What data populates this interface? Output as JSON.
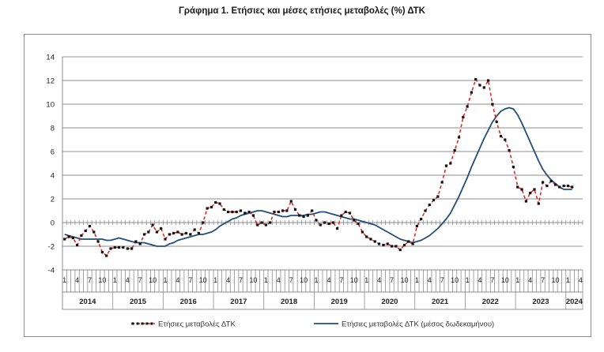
{
  "title": "Γράφημα 1. Ετήσιες και μέσες ετήσιες μεταβολές (%) ΔΤΚ",
  "colors": {
    "annual": "#e0201b",
    "marker": "#111111",
    "average": "#1f4e79",
    "grid": "#8c8c8c"
  },
  "chart_data": {
    "type": "line",
    "title": "Γράφημα 1. Ετήσιες και μέσες ετήσιες μεταβολές (%) ΔΤΚ",
    "xlabel": "",
    "ylabel": "",
    "ylim": [
      -4,
      14
    ],
    "yticks": [
      "14",
      "12",
      "10",
      "8",
      "6",
      "4",
      "2",
      "0",
      "-2",
      "-4"
    ],
    "grid": true,
    "legend_position": "bottom",
    "month_labels": [
      "1",
      "4",
      "7",
      "10"
    ],
    "years": [
      "2014",
      "2015",
      "2016",
      "2017",
      "2018",
      "2019",
      "2020",
      "2021",
      "2022",
      "2023",
      "2024"
    ],
    "x_start": "2014-01",
    "series": [
      {
        "name": "Ετήσιες μεταβολές ΔΤΚ",
        "style": "dashed-markers",
        "values": [
          -1.4,
          -1.2,
          -1.3,
          -1.9,
          -1.1,
          -0.7,
          -0.3,
          -0.8,
          -1.6,
          -2.5,
          -2.8,
          -2.2,
          -2.1,
          -2.1,
          -2.1,
          -2.2,
          -2.2,
          -1.6,
          -1.8,
          -1.0,
          -0.8,
          -0.2,
          -0.8,
          -0.5,
          -1.4,
          -1.0,
          -0.9,
          -0.8,
          -1.0,
          -0.9,
          -1.0,
          -0.6,
          -0.9,
          0.0,
          1.2,
          1.3,
          1.7,
          1.6,
          1.1,
          0.9,
          0.9,
          0.9,
          1.0,
          0.8,
          0.9,
          0.6,
          -0.2,
          0.0,
          -0.2,
          0.0,
          0.9,
          0.9,
          1.0,
          1.0,
          1.8,
          1.1,
          0.6,
          0.5,
          0.6,
          1.0,
          0.2,
          -0.2,
          0.0,
          -0.1,
          0.0,
          -0.5,
          0.6,
          0.9,
          0.8,
          0.2,
          -0.1,
          -0.8,
          -1.2,
          -1.4,
          -1.6,
          -1.8,
          -1.9,
          -1.8,
          -2.0,
          -2.0,
          -2.3,
          -1.9,
          -1.6,
          -1.8,
          -0.3,
          0.3,
          1.0,
          1.5,
          1.9,
          2.2,
          3.4,
          4.8,
          5.0,
          6.1,
          7.2,
          8.9,
          9.8,
          11.0,
          12.1,
          11.6,
          11.4,
          12.0,
          10.0,
          8.5,
          7.3,
          7.0,
          6.1,
          4.7,
          3.0,
          2.8,
          1.8,
          2.5,
          2.8,
          1.6,
          3.4,
          3.1,
          3.5,
          3.2,
          3.0,
          3.1,
          3.1,
          3.0
        ]
      },
      {
        "name": "Ετήσιες μεταβολές ΔΤΚ (μέσος δωδεκαμήνου)",
        "style": "solid",
        "values": [
          -1.0,
          -1.1,
          -1.2,
          -1.3,
          -1.4,
          -1.4,
          -1.4,
          -1.4,
          -1.4,
          -1.4,
          -1.5,
          -1.5,
          -1.4,
          -1.3,
          -1.4,
          -1.5,
          -1.6,
          -1.7,
          -1.7,
          -1.7,
          -1.8,
          -1.9,
          -2.0,
          -2.0,
          -2.0,
          -1.8,
          -1.7,
          -1.5,
          -1.4,
          -1.3,
          -1.2,
          -1.1,
          -1.0,
          -1.0,
          -0.9,
          -0.8,
          -0.6,
          -0.3,
          -0.1,
          0.1,
          0.3,
          0.4,
          0.6,
          0.7,
          0.8,
          0.9,
          1.0,
          1.0,
          0.9,
          0.8,
          0.7,
          0.6,
          0.5,
          0.5,
          0.6,
          0.6,
          0.6,
          0.6,
          0.7,
          0.7,
          0.8,
          0.9,
          0.9,
          0.8,
          0.7,
          0.6,
          0.5,
          0.4,
          0.3,
          0.3,
          0.2,
          0.1,
          0.0,
          -0.1,
          -0.2,
          -0.4,
          -0.6,
          -0.8,
          -1.0,
          -1.2,
          -1.4,
          -1.5,
          -1.6,
          -1.7,
          -1.6,
          -1.5,
          -1.3,
          -1.1,
          -0.8,
          -0.5,
          -0.1,
          0.3,
          0.8,
          1.5,
          2.2,
          3.0,
          3.8,
          4.7,
          5.5,
          6.3,
          7.1,
          7.8,
          8.5,
          9.0,
          9.4,
          9.6,
          9.7,
          9.6,
          9.1,
          8.4,
          7.6,
          6.8,
          6.0,
          5.2,
          4.5,
          4.0,
          3.6,
          3.3,
          3.0,
          2.8,
          2.8,
          2.8
        ]
      }
    ]
  }
}
